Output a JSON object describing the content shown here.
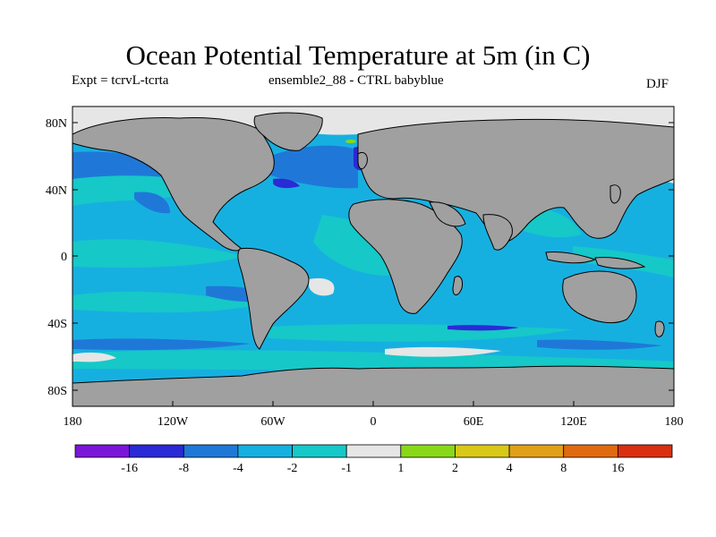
{
  "title": "Ocean Potential Temperature at 5m (in C)",
  "experiment": "Expt = tcrvL-tcrta",
  "ensemble": "ensemble2_88 - CTRL babyblue",
  "season": "DJF",
  "y_axis_labels": [
    "80N",
    "40N",
    "0",
    "40S",
    "80S"
  ],
  "x_axis_labels": [
    "180",
    "120W",
    "60W",
    "0",
    "60E",
    "120E",
    "180"
  ],
  "colorbar": {
    "labels": [
      "-16",
      "-8",
      "-4",
      "-2",
      "-1",
      "1",
      "2",
      "4",
      "8",
      "16"
    ],
    "colors": [
      "#7b16d8",
      "#2a2ad6",
      "#1f78d8",
      "#16b0e0",
      "#16c8c8",
      "#e6e6e6",
      "#88d818",
      "#d8c818",
      "#e0a018",
      "#e06a10",
      "#d83010"
    ]
  },
  "colors": {
    "land": "#a0a0a0",
    "ice": "#e6e6e6",
    "ocean_main": "#16b0e0",
    "ocean_cyan": "#16c8c8",
    "ocean_blue": "#1f78d8",
    "ocean_deep": "#2a2ad6"
  }
}
